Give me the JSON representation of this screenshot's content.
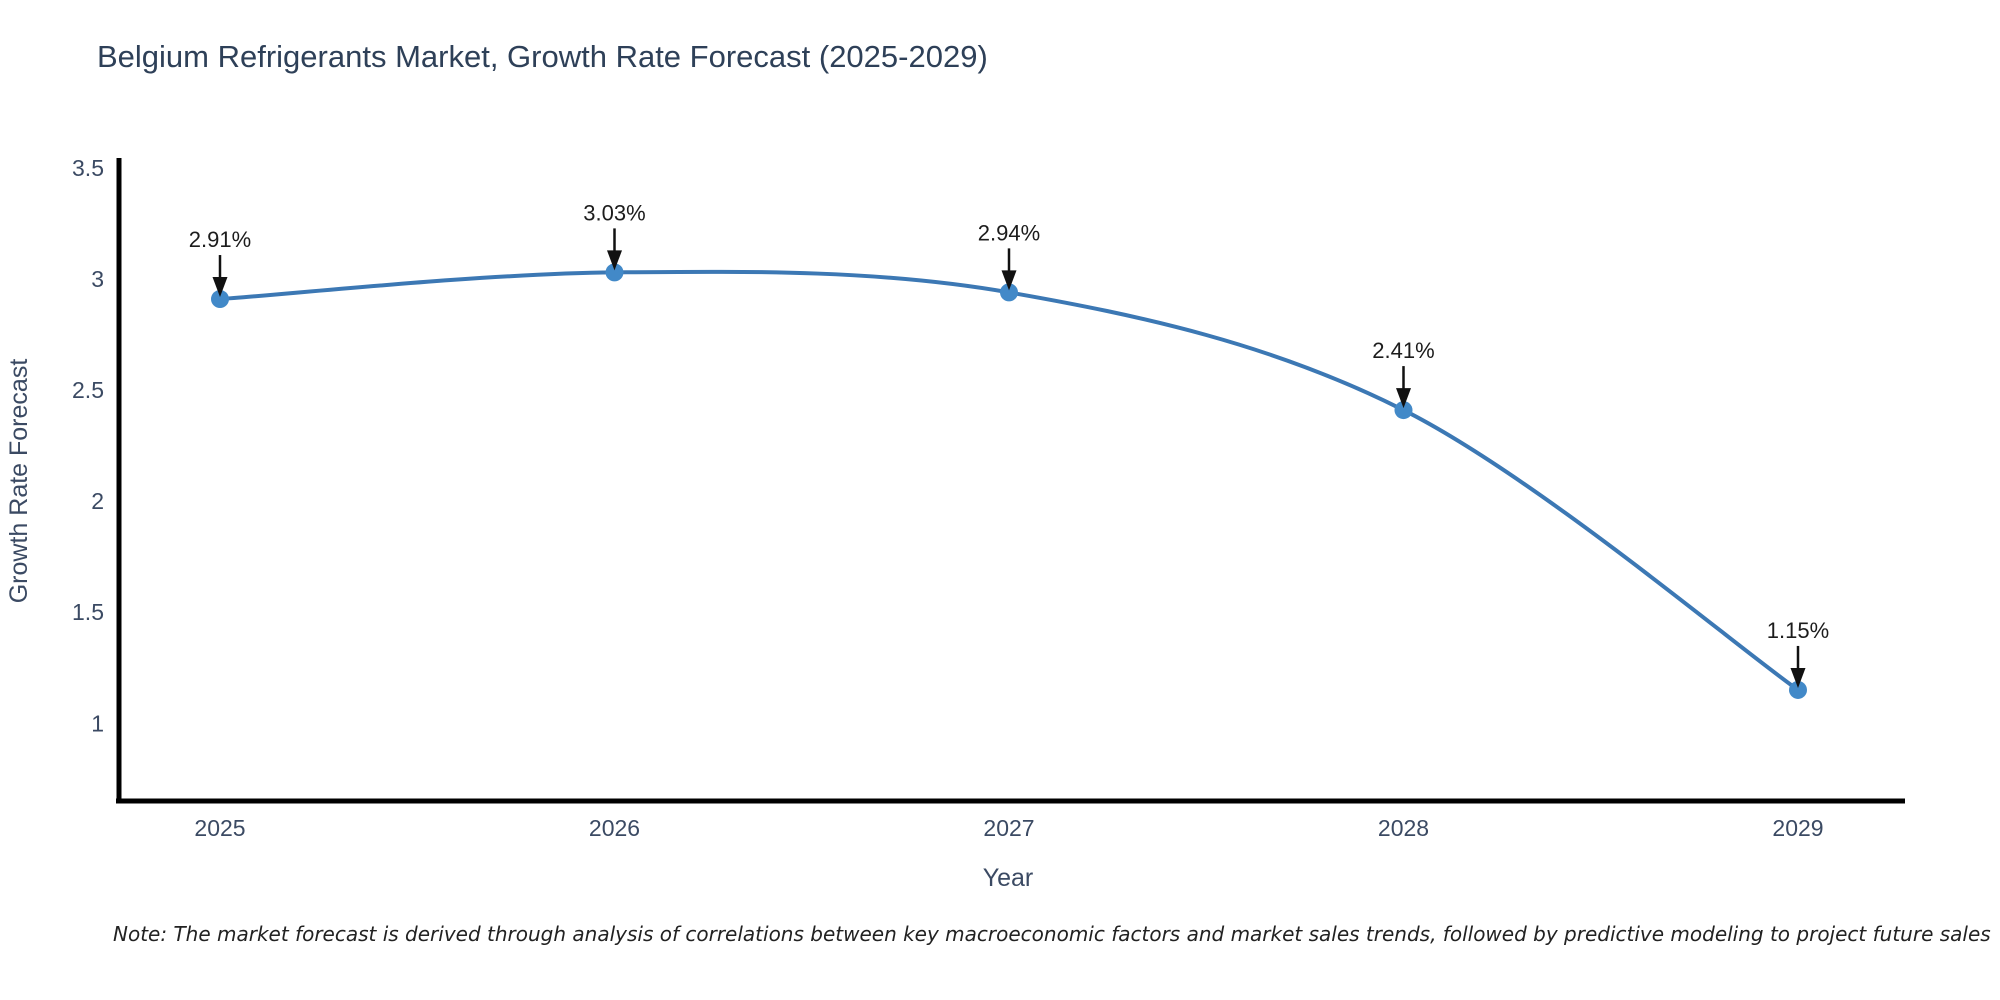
{
  "chart_data": {
    "type": "line",
    "title": "Belgium Refrigerants Market, Growth Rate Forecast (2025-2029)",
    "xlabel": "Year",
    "ylabel": "Growth Rate Forecast",
    "categories": [
      "2025",
      "2026",
      "2027",
      "2028",
      "2029"
    ],
    "values": [
      2.91,
      3.03,
      2.94,
      2.41,
      1.15
    ],
    "point_labels": [
      "2.91%",
      "3.03%",
      "2.94%",
      "2.41%",
      "1.15%"
    ],
    "ytick_labels": [
      "3.5",
      "3",
      "2.5",
      "2",
      "1.5",
      "1"
    ],
    "ytick_values": [
      3.5,
      3,
      2.5,
      2,
      1.5,
      1
    ],
    "ylim": [
      0.65,
      3.545
    ],
    "line_shape": "spline",
    "grid": false,
    "legend": "none",
    "colors": {
      "line": "#3c78b4",
      "marker": "#4289c8",
      "axis": "#000000",
      "title_text": "#2e4058",
      "tick_text": "#3b4a63",
      "annotation_text": "#1c1c1c",
      "annotation_arrow": "#111111",
      "note_text": "#222222"
    }
  },
  "footnote": "Note: The market forecast is derived through analysis of correlations between key macroeconomic factors and market sales trends, followed by predictive modeling to project future sales"
}
